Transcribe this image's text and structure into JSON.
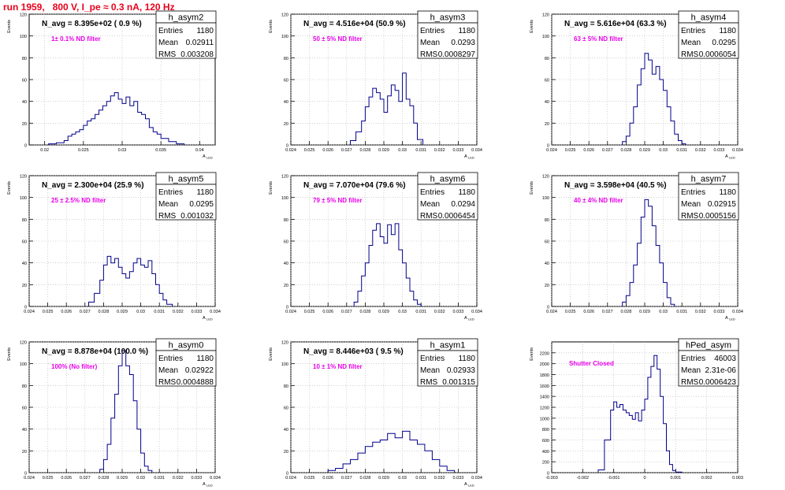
{
  "title": "run 1959,   800 V, I_pe ≈ 0.3 nA, 120 Hz",
  "colors": {
    "title": "#e8001a",
    "annotation": "#e800e8",
    "line": "#00008b",
    "grid": "#b4b4b4"
  },
  "chart_data": [
    {
      "type": "histogram",
      "title": "h_asym2",
      "stats": [
        [
          "Entries",
          "1180"
        ],
        [
          "Mean",
          "0.02911"
        ],
        [
          "RMS",
          "0.003208"
        ]
      ],
      "navg": "N_avg = 8.395e+02 ( 0.9 %)",
      "note": "1± 0.1% ND filter",
      "xlabel": "A",
      "xlabel_sub": "LED",
      "ylabel": "Events",
      "xlim": [
        0.018,
        0.042
      ],
      "xticks": [
        "0.02",
        "0.025",
        "0.03",
        "0.035",
        "0.04"
      ],
      "xtick_values": [
        0.02,
        0.025,
        0.03,
        0.035,
        0.04
      ],
      "ylim": [
        0,
        120
      ],
      "yticks": [
        0,
        20,
        40,
        60,
        80,
        100,
        120
      ],
      "x": [
        0.0205,
        0.0215,
        0.0225,
        0.023,
        0.0235,
        0.024,
        0.0245,
        0.025,
        0.0255,
        0.026,
        0.0265,
        0.027,
        0.0275,
        0.028,
        0.0285,
        0.029,
        0.0295,
        0.03,
        0.0305,
        0.031,
        0.0315,
        0.032,
        0.0325,
        0.033,
        0.0335,
        0.034,
        0.0345,
        0.035,
        0.036,
        0.037
      ],
      "values": [
        1,
        2,
        4,
        8,
        10,
        12,
        14,
        18,
        22,
        24,
        28,
        32,
        36,
        40,
        45,
        48,
        42,
        38,
        44,
        36,
        40,
        30,
        28,
        24,
        16,
        12,
        10,
        6,
        3,
        1
      ]
    },
    {
      "type": "histogram",
      "title": "h_asym3",
      "stats": [
        [
          "Entries",
          "1180"
        ],
        [
          "Mean",
          "0.0293"
        ],
        [
          "RMS",
          "0.0008297"
        ]
      ],
      "navg": "N_avg = 4.516e+04 (50.9 %)",
      "note": "50 ± 5% ND filter",
      "xlabel": "A",
      "xlabel_sub": "LED",
      "ylabel": "Events",
      "xlim": [
        0.024,
        0.034
      ],
      "xticks": [
        "0.024",
        "0.025",
        "0.026",
        "0.027",
        "0.028",
        "0.029",
        "0.03",
        "0.031",
        "0.032",
        "0.033",
        "0.034"
      ],
      "xtick_values": [
        0.024,
        0.025,
        0.026,
        0.027,
        0.028,
        0.029,
        0.03,
        0.031,
        0.032,
        0.033,
        0.034
      ],
      "ylim": [
        0,
        120
      ],
      "yticks": [
        0,
        20,
        40,
        60,
        80,
        100,
        120
      ],
      "x": [
        0.0272,
        0.0275,
        0.0278,
        0.028,
        0.0282,
        0.0284,
        0.0286,
        0.0288,
        0.029,
        0.0292,
        0.0294,
        0.0296,
        0.0298,
        0.03,
        0.0302,
        0.0304,
        0.0306,
        0.0308
      ],
      "values": [
        4,
        12,
        22,
        35,
        44,
        52,
        48,
        42,
        30,
        45,
        55,
        50,
        40,
        66,
        42,
        36,
        20,
        5
      ]
    },
    {
      "type": "histogram",
      "title": "h_asym4",
      "stats": [
        [
          "Entries",
          "1180"
        ],
        [
          "Mean",
          "0.0295"
        ],
        [
          "RMS",
          "0.0006054"
        ]
      ],
      "navg": "N_avg = 5.616e+04 (63.3 %)",
      "note": "63 ± 5% ND filter",
      "xlabel": "A",
      "xlabel_sub": "LED",
      "ylabel": "Events",
      "xlim": [
        0.024,
        0.034
      ],
      "xticks": [
        "0.024",
        "0.025",
        "0.026",
        "0.027",
        "0.028",
        "0.029",
        "0.03",
        "0.031",
        "0.032",
        "0.033",
        "0.034"
      ],
      "xtick_values": [
        0.024,
        0.025,
        0.026,
        0.027,
        0.028,
        0.029,
        0.03,
        0.031,
        0.032,
        0.033,
        0.034
      ],
      "ylim": [
        0,
        120
      ],
      "yticks": [
        0,
        20,
        40,
        60,
        80,
        100,
        120
      ],
      "x": [
        0.0278,
        0.028,
        0.0282,
        0.0284,
        0.0286,
        0.0288,
        0.029,
        0.0292,
        0.0294,
        0.0296,
        0.0298,
        0.03,
        0.0302,
        0.0304,
        0.0306,
        0.0308,
        0.031
      ],
      "values": [
        3,
        8,
        20,
        35,
        55,
        70,
        84,
        78,
        65,
        72,
        60,
        50,
        35,
        22,
        10,
        4,
        1
      ]
    },
    {
      "type": "histogram",
      "title": "h_asym5",
      "stats": [
        [
          "Entries",
          "1180"
        ],
        [
          "Mean",
          "0.0295"
        ],
        [
          "RMS",
          "0.001032"
        ]
      ],
      "navg": "N_avg = 2.300e+04 (25.9 %)",
      "note": "25 ± 2.5% ND filter",
      "xlabel": "A",
      "xlabel_sub": "LED",
      "ylabel": "Events",
      "xlim": [
        0.024,
        0.034
      ],
      "xticks": [
        "0.024",
        "0.025",
        "0.026",
        "0.027",
        "0.028",
        "0.029",
        "0.03",
        "0.031",
        "0.032",
        "0.033",
        "0.034"
      ],
      "xtick_values": [
        0.024,
        0.025,
        0.026,
        0.027,
        0.028,
        0.029,
        0.03,
        0.031,
        0.032,
        0.033,
        0.034
      ],
      "ylim": [
        0,
        120
      ],
      "yticks": [
        0,
        20,
        40,
        60,
        80,
        100,
        120
      ],
      "x": [
        0.0272,
        0.0275,
        0.0278,
        0.028,
        0.0282,
        0.0284,
        0.0286,
        0.0288,
        0.029,
        0.0292,
        0.0294,
        0.0296,
        0.0298,
        0.03,
        0.0302,
        0.0304,
        0.0306,
        0.0308,
        0.031,
        0.0312,
        0.0314
      ],
      "values": [
        4,
        12,
        24,
        38,
        46,
        40,
        44,
        36,
        30,
        26,
        32,
        40,
        44,
        38,
        36,
        42,
        30,
        20,
        12,
        6,
        2
      ]
    },
    {
      "type": "histogram",
      "title": "h_asym6",
      "stats": [
        [
          "Entries",
          "1180"
        ],
        [
          "Mean",
          "0.0294"
        ],
        [
          "RMS",
          "0.0006454"
        ]
      ],
      "navg": "N_avg = 7.070e+04 (79.6 %)",
      "note": "79 ± 5% ND filter",
      "xlabel": "A",
      "xlabel_sub": "LED",
      "ylabel": "Events",
      "xlim": [
        0.024,
        0.034
      ],
      "xticks": [
        "0.024",
        "0.025",
        "0.026",
        "0.027",
        "0.028",
        "0.029",
        "0.03",
        "0.031",
        "0.032",
        "0.033",
        "0.034"
      ],
      "xtick_values": [
        0.024,
        0.025,
        0.026,
        0.027,
        0.028,
        0.029,
        0.03,
        0.031,
        0.032,
        0.033,
        0.034
      ],
      "ylim": [
        0,
        120
      ],
      "yticks": [
        0,
        20,
        40,
        60,
        80,
        100,
        120
      ],
      "x": [
        0.0274,
        0.0276,
        0.0278,
        0.028,
        0.0282,
        0.0284,
        0.0286,
        0.0288,
        0.029,
        0.0292,
        0.0294,
        0.0296,
        0.0298,
        0.03,
        0.0302,
        0.0304,
        0.0306,
        0.0308
      ],
      "values": [
        4,
        14,
        28,
        40,
        56,
        70,
        76,
        64,
        58,
        75,
        66,
        76,
        52,
        40,
        26,
        14,
        6,
        2
      ]
    },
    {
      "type": "histogram",
      "title": "h_asym7",
      "stats": [
        [
          "Entries",
          "1180"
        ],
        [
          "Mean",
          "0.02915"
        ],
        [
          "RMS",
          "0.0005156"
        ]
      ],
      "navg": "N_avg = 3.598e+04 (40.5 %)",
      "note": "40 ± 4% ND filter",
      "xlabel": "A",
      "xlabel_sub": "LED",
      "ylabel": "Events",
      "xlim": [
        0.024,
        0.034
      ],
      "xticks": [
        "0.024",
        "0.025",
        "0.026",
        "0.027",
        "0.028",
        "0.029",
        "0.03",
        "0.031",
        "0.032",
        "0.033",
        "0.034"
      ],
      "xtick_values": [
        0.024,
        0.025,
        0.026,
        0.027,
        0.028,
        0.029,
        0.03,
        0.031,
        0.032,
        0.033,
        0.034
      ],
      "ylim": [
        0,
        120
      ],
      "yticks": [
        0,
        20,
        40,
        60,
        80,
        100,
        120
      ],
      "x": [
        0.0278,
        0.028,
        0.0282,
        0.0284,
        0.0286,
        0.0288,
        0.029,
        0.0292,
        0.0294,
        0.0296,
        0.0298,
        0.03,
        0.0302,
        0.0304
      ],
      "values": [
        4,
        10,
        22,
        38,
        58,
        82,
        98,
        92,
        74,
        56,
        40,
        22,
        8,
        2
      ]
    },
    {
      "type": "histogram",
      "title": "h_asym0",
      "stats": [
        [
          "Entries",
          "1180"
        ],
        [
          "Mean",
          "0.02922"
        ],
        [
          "RMS",
          "0.0004888"
        ]
      ],
      "navg": "N_avg = 8.878e+04 (100.0 %)",
      "note": "100% (No filter)",
      "xlabel": "A",
      "xlabel_sub": "LED",
      "ylabel": "Events",
      "xlim": [
        0.024,
        0.034
      ],
      "xticks": [
        "0.024",
        "0.025",
        "0.026",
        "0.027",
        "0.028",
        "0.029",
        "0.03",
        "0.031",
        "0.032",
        "0.033",
        "0.034"
      ],
      "xtick_values": [
        0.024,
        0.025,
        0.026,
        0.027,
        0.028,
        0.029,
        0.03,
        0.031,
        0.032,
        0.033,
        0.034
      ],
      "ylim": [
        0,
        120
      ],
      "yticks": [
        0,
        20,
        40,
        60,
        80,
        100,
        120
      ],
      "x": [
        0.0278,
        0.028,
        0.0282,
        0.0284,
        0.0286,
        0.0288,
        0.029,
        0.0292,
        0.0294,
        0.0296,
        0.0298,
        0.03,
        0.0302,
        0.0304
      ],
      "values": [
        3,
        12,
        26,
        50,
        72,
        98,
        112,
        98,
        90,
        66,
        40,
        18,
        6,
        2
      ]
    },
    {
      "type": "histogram",
      "title": "h_asym1",
      "stats": [
        [
          "Entries",
          "1180"
        ],
        [
          "Mean",
          "0.02933"
        ],
        [
          "RMS",
          "0.001315"
        ]
      ],
      "navg": "N_avg = 8.446e+03 ( 9.5 %)",
      "note": "10 ± 1% ND filter",
      "xlabel": "A",
      "xlabel_sub": "LED",
      "ylabel": "Events",
      "xlim": [
        0.024,
        0.034
      ],
      "xticks": [
        "0.024",
        "0.025",
        "0.026",
        "0.027",
        "0.028",
        "0.029",
        "0.03",
        "0.031",
        "0.032",
        "0.033",
        "0.034"
      ],
      "xtick_values": [
        0.024,
        0.025,
        0.026,
        0.027,
        0.028,
        0.029,
        0.03,
        0.031,
        0.032,
        0.033,
        0.034
      ],
      "ylim": [
        0,
        120
      ],
      "yticks": [
        0,
        20,
        40,
        60,
        80,
        100,
        120
      ],
      "x": [
        0.026,
        0.0264,
        0.0268,
        0.0272,
        0.0276,
        0.028,
        0.0284,
        0.0288,
        0.0292,
        0.0296,
        0.03,
        0.0304,
        0.0308,
        0.0312,
        0.0316,
        0.032,
        0.0324
      ],
      "values": [
        2,
        4,
        8,
        12,
        18,
        24,
        28,
        30,
        36,
        32,
        38,
        30,
        26,
        20,
        12,
        6,
        2
      ]
    },
    {
      "type": "histogram",
      "title": "hPed_asym",
      "stats": [
        [
          "Entries",
          "46003"
        ],
        [
          "Mean",
          "2.31e-06"
        ],
        [
          "RMS",
          "0.0006423"
        ]
      ],
      "navg": "",
      "note": "Shutter Closed",
      "xlabel": "",
      "xlabel_sub": "",
      "ylabel": "Events",
      "xlim": [
        -0.003,
        0.003
      ],
      "xticks": [
        "-0.003",
        "-0.002",
        "-0.001",
        "0",
        "0.001",
        "0.002",
        "0.003"
      ],
      "xtick_values": [
        -0.003,
        -0.002,
        -0.001,
        0,
        0.001,
        0.002,
        0.003
      ],
      "ylim": [
        0,
        2400
      ],
      "yticks": [
        0,
        200,
        400,
        600,
        800,
        1000,
        1200,
        1400,
        1600,
        1800,
        2000,
        2200
      ],
      "x": [
        -0.0015,
        -0.0013,
        -0.0011,
        -0.001,
        -0.0009,
        -0.0008,
        -0.0007,
        -0.0006,
        -0.0005,
        -0.0004,
        -0.0003,
        -0.0002,
        -0.0001,
        0,
        0.0001,
        0.0002,
        0.0003,
        0.0004,
        0.0005,
        0.0006,
        0.0007,
        0.0008,
        0.0009,
        0.001
      ],
      "values": [
        50,
        600,
        1150,
        1300,
        1200,
        1250,
        1150,
        1100,
        1050,
        980,
        1100,
        950,
        1150,
        1350,
        1750,
        1950,
        2150,
        1900,
        1400,
        900,
        400,
        150,
        40,
        10
      ]
    }
  ]
}
